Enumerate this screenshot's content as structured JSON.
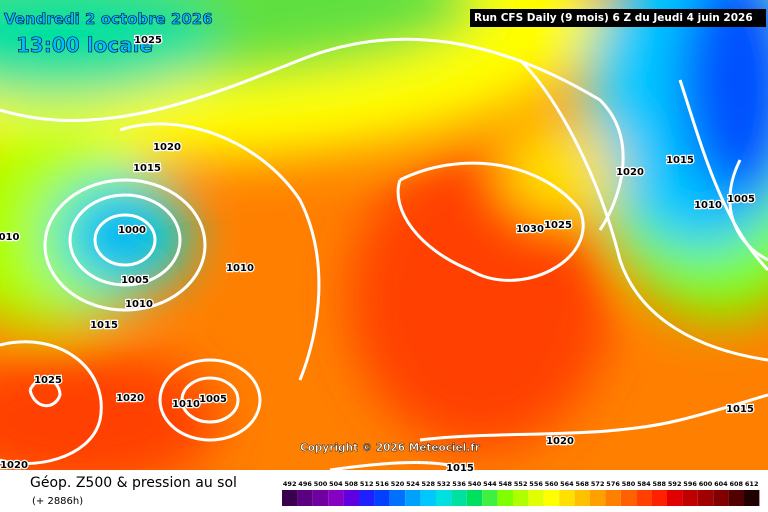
{
  "header": {
    "date": "Vendredi 2 octobre 2026",
    "time": "13:00 locale",
    "run": "Run CFS Daily (9 mois) 6 Z du Jeudi 4 juin 2026"
  },
  "copyright": "Copyright © 2026 Meteociel.fr",
  "footer": {
    "title": "Géop. Z500 & pression au sol",
    "lead": "(+ 2886h)"
  },
  "isobar_labels": [
    "1025",
    "1020",
    "1015",
    "1000",
    "1005",
    "1010",
    "1015",
    "1025",
    "1020",
    "1010",
    "1005",
    "1010",
    "010",
    "1020",
    "1030",
    "1025",
    "1020",
    "1015",
    "1010",
    "1005",
    "1015",
    "1020",
    "1015"
  ],
  "scale": {
    "labels": [
      492,
      496,
      500,
      504,
      508,
      512,
      516,
      520,
      524,
      528,
      532,
      536,
      540,
      544,
      548,
      552,
      556,
      560,
      564,
      568,
      572,
      576,
      580,
      584,
      588,
      592,
      596,
      600,
      604,
      608,
      612
    ],
    "colors": [
      "#3a0050",
      "#5a0080",
      "#7000a0",
      "#8800c0",
      "#6000e0",
      "#2020ff",
      "#0040ff",
      "#0070ff",
      "#00a0ff",
      "#00c8ff",
      "#00e0e0",
      "#00e0a0",
      "#00e060",
      "#40f040",
      "#80ff00",
      "#b0ff00",
      "#e0ff00",
      "#ffff00",
      "#ffe000",
      "#ffc000",
      "#ffa000",
      "#ff8000",
      "#ff6000",
      "#ff4000",
      "#ff2000",
      "#e00000",
      "#c00000",
      "#a00000",
      "#800000",
      "#500000",
      "#200000"
    ]
  }
}
